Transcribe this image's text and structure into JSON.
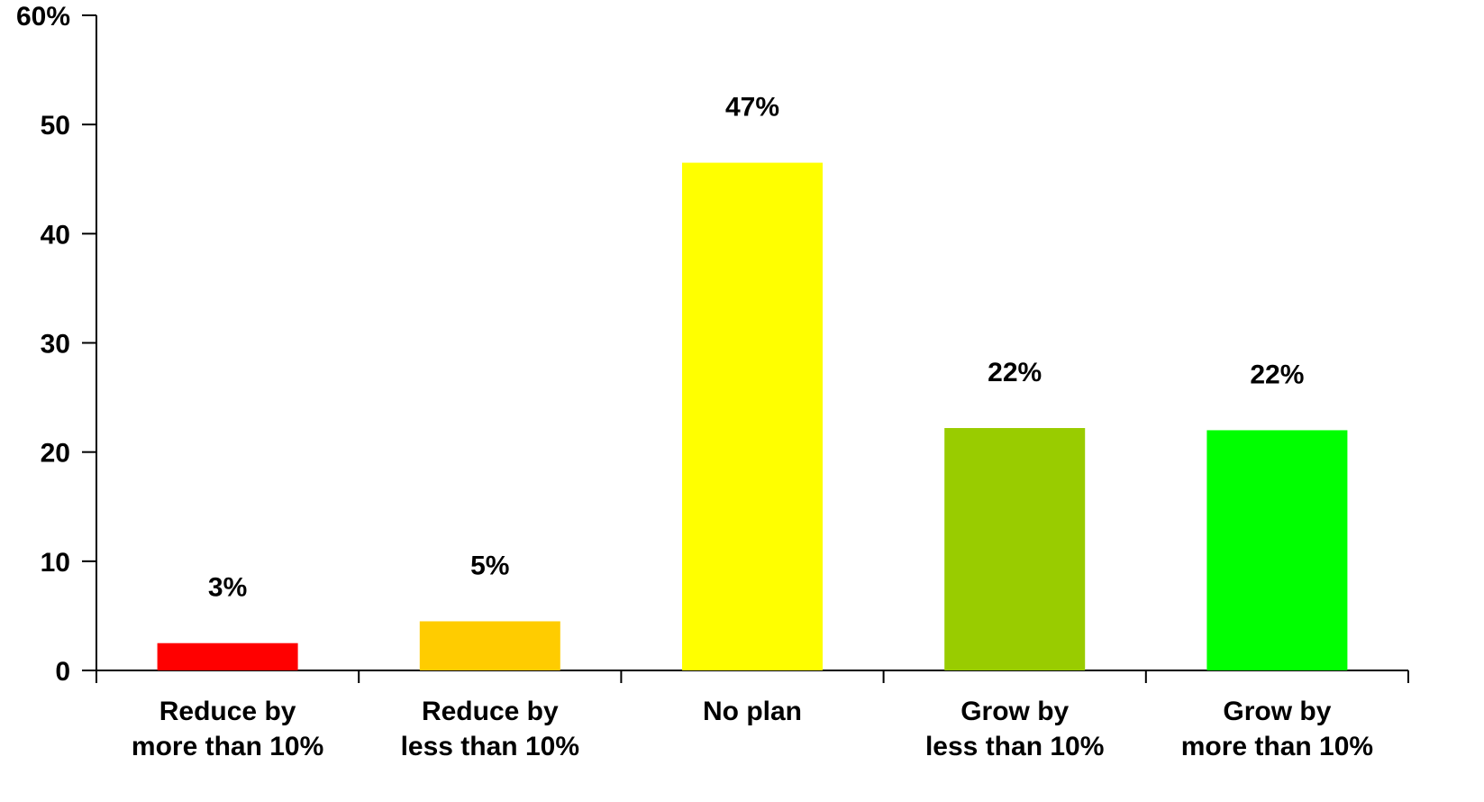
{
  "chart_data": {
    "type": "bar",
    "categories": [
      [
        "Reduce by",
        "more than 10%"
      ],
      [
        "Reduce by",
        "less than 10%"
      ],
      [
        "No plan"
      ],
      [
        "Grow by",
        "less than 10%"
      ],
      [
        "Grow by",
        "more than 10%"
      ]
    ],
    "values": [
      2.5,
      4.5,
      46.5,
      22.2,
      22.0
    ],
    "value_labels": [
      "3%",
      "5%",
      "47%",
      "22%",
      "22%"
    ],
    "colors": [
      "#ff0000",
      "#ffcc00",
      "#ffff00",
      "#99cc00",
      "#00ff00"
    ],
    "ylim": [
      0,
      60
    ],
    "yticks": [
      0,
      10,
      20,
      30,
      40,
      50,
      {
        "value": 60,
        "label": "60%"
      }
    ],
    "grid": false
  }
}
